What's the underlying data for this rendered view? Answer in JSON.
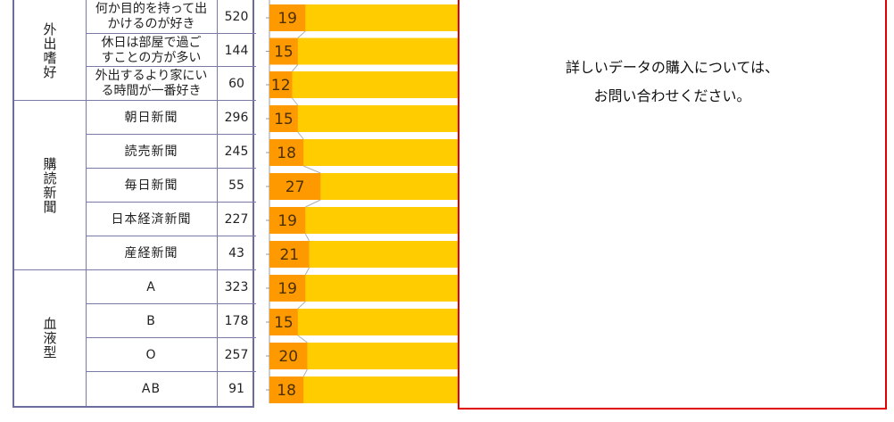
{
  "groups": [
    {
      "name": "外出嗜好",
      "rows": [
        {
          "label": [
            "何か目的を持って出",
            "かけるのが好き"
          ],
          "count": "520"
        },
        {
          "label": [
            "休日は部屋で過ご",
            "すことの方が多い"
          ],
          "count": "144"
        },
        {
          "label": [
            "外出するより家にい",
            "る時間が一番好き"
          ],
          "count": "60"
        }
      ]
    },
    {
      "name": "購読新聞",
      "rows": [
        {
          "label": [
            "朝日新聞"
          ],
          "count": "296"
        },
        {
          "label": [
            "読売新聞"
          ],
          "count": "245"
        },
        {
          "label": [
            "毎日新聞"
          ],
          "count": "55"
        },
        {
          "label": [
            "日本経済新聞"
          ],
          "count": "227"
        },
        {
          "label": [
            "産経新聞"
          ],
          "count": "43"
        }
      ]
    },
    {
      "name": "血液型",
      "rows": [
        {
          "label": [
            "A"
          ],
          "count": "323"
        },
        {
          "label": [
            "B"
          ],
          "count": "178"
        },
        {
          "label": [
            "O"
          ],
          "count": "257"
        },
        {
          "label": [
            "AB"
          ],
          "count": "91"
        }
      ]
    }
  ],
  "chart_data": {
    "type": "bar",
    "orientation": "horizontal-stacked",
    "categories": [
      "何か目的を持って出かけるのが好き",
      "休日は部屋で過ごすことの方が多い",
      "外出するより家にいる時間が一番好き",
      "朝日新聞",
      "読売新聞",
      "毎日新聞",
      "日本経済新聞",
      "産経新聞",
      "A",
      "B",
      "O",
      "AB"
    ],
    "series": [
      {
        "values": [
          19,
          15,
          12,
          15,
          18,
          27,
          19,
          21,
          19,
          15,
          20,
          18
        ],
        "color": "#ff9900"
      }
    ],
    "xlim": [
      0,
      100
    ],
    "other_segment_color": "#ffcc00",
    "connector_color": "#b0b0b0"
  },
  "notice": {
    "line1": "詳しいデータの購入については、",
    "line2": "お問い合わせください。",
    "border_color": "#e00000"
  }
}
